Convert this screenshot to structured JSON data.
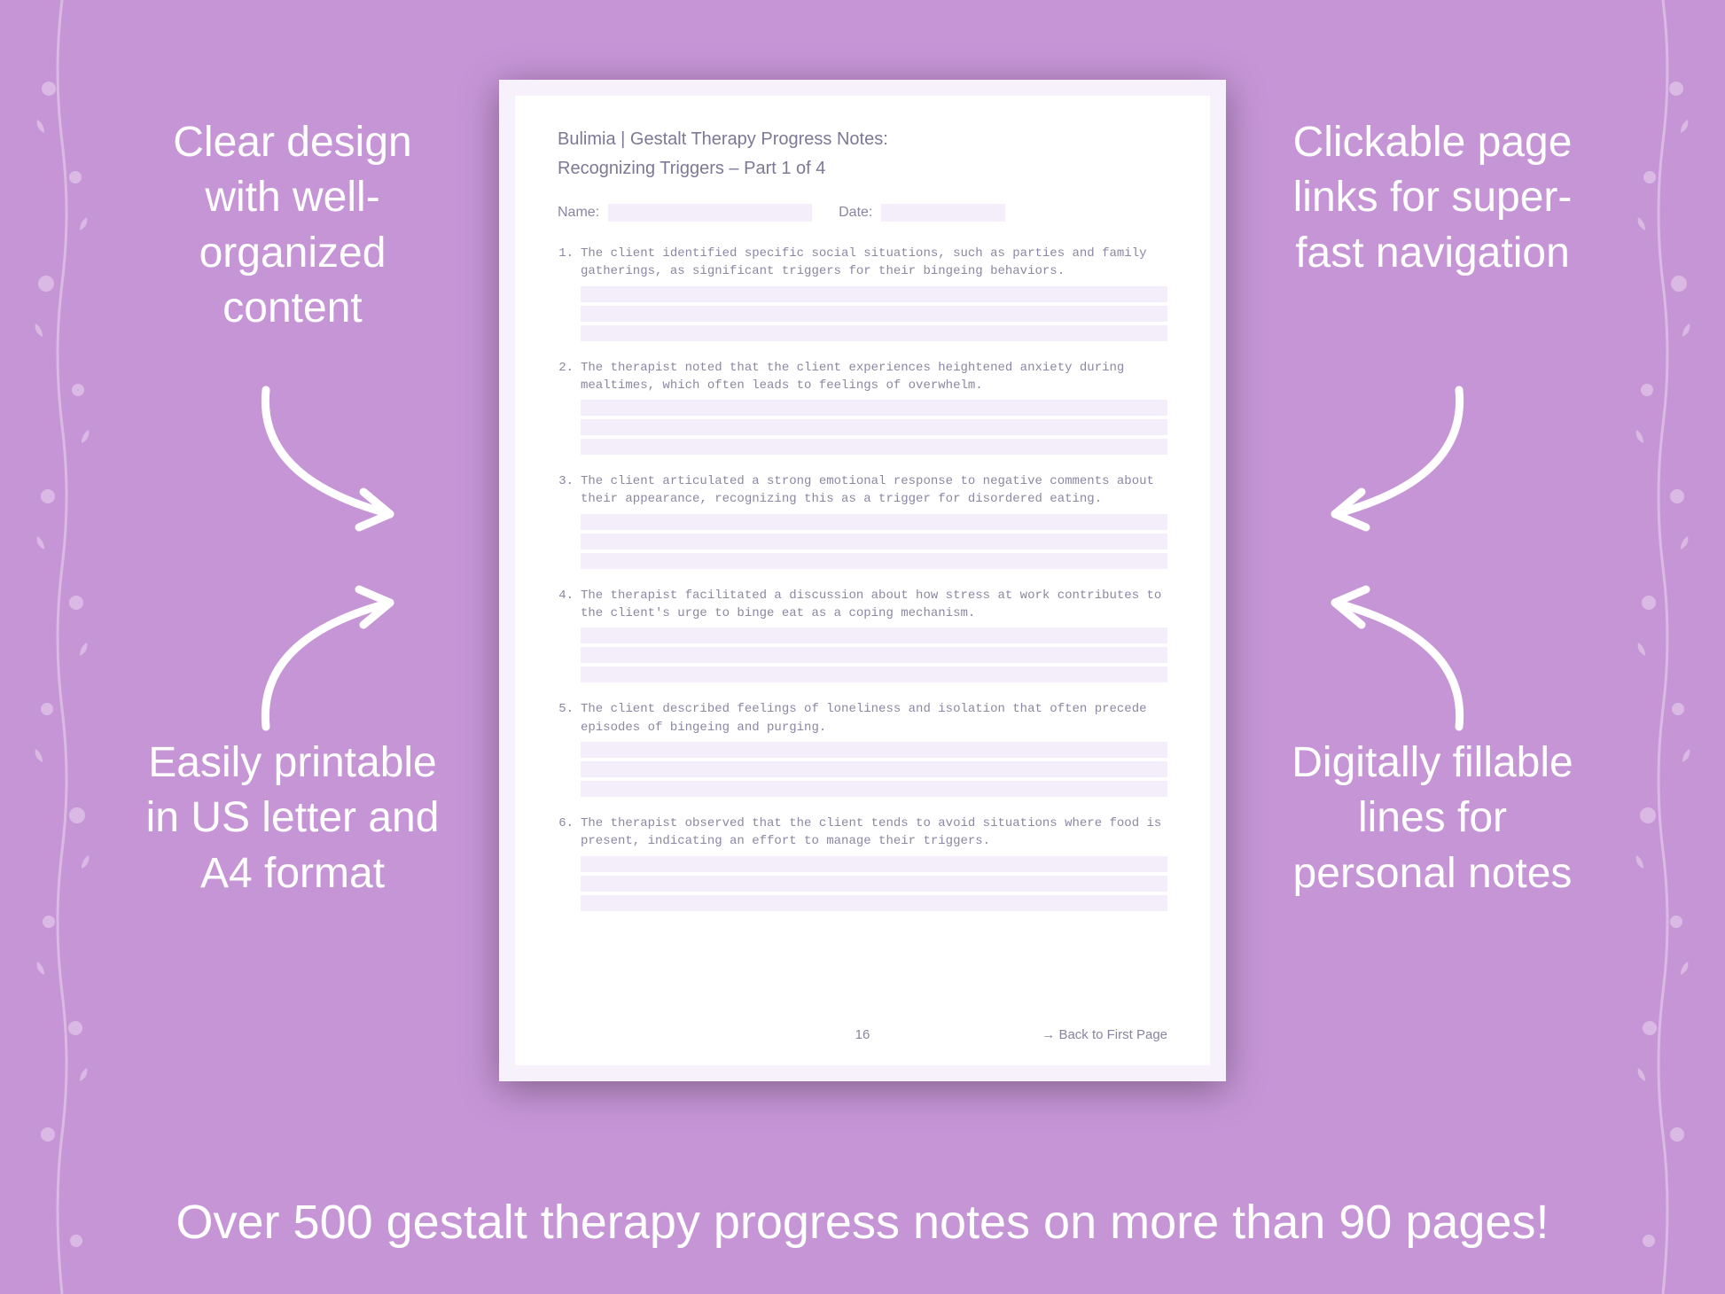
{
  "colors": {
    "background": "#c695d6",
    "text_white": "#ffffff",
    "page_outer": "#f7f1fb",
    "page_inner": "#ffffff",
    "doc_text": "#7d7896",
    "doc_muted": "#8a85a0",
    "fill_line": "#f3eef9",
    "shadow": "rgba(0,0,0,0.35)"
  },
  "typography": {
    "callout_fontsize": 48,
    "callout_weight": 300,
    "bottom_fontsize": 54,
    "bottom_weight": 500,
    "doc_title_fontsize": 20,
    "note_fontsize": 14,
    "note_font": "monospace"
  },
  "callouts": {
    "top_left": "Clear design with well-organized content",
    "top_right": "Clickable page links for super-fast navigation",
    "bottom_left": "Easily printable in US letter and A4 format",
    "bottom_right": "Digitally fillable lines for personal notes"
  },
  "bottom_text": "Over 500 gestalt therapy progress notes on more than 90 pages!",
  "document": {
    "title": "Bulimia | Gestalt Therapy Progress Notes:",
    "subtitle": "Recognizing Triggers  – Part 1 of 4",
    "name_label": "Name:",
    "date_label": "Date:",
    "page_number": "16",
    "back_link": "→ Back to First Page",
    "notes": [
      {
        "num": "1.",
        "text": "The client identified specific social situations, such as parties and family gatherings, as significant triggers for their bingeing behaviors."
      },
      {
        "num": "2.",
        "text": "The therapist noted that the client experiences heightened anxiety during mealtimes, which often leads to feelings of overwhelm."
      },
      {
        "num": "3.",
        "text": "The client articulated a strong emotional response to negative comments about their appearance, recognizing this as a trigger for disordered eating."
      },
      {
        "num": "4.",
        "text": "The therapist facilitated a discussion about how stress at work contributes to the client's urge to binge eat as a coping mechanism."
      },
      {
        "num": "5.",
        "text": "The client described feelings of loneliness and isolation that often precede episodes of bingeing and purging."
      },
      {
        "num": "6.",
        "text": "The therapist observed that the client tends to avoid situations where food is present, indicating an effort to manage their triggers."
      }
    ],
    "lines_per_note": 3
  }
}
